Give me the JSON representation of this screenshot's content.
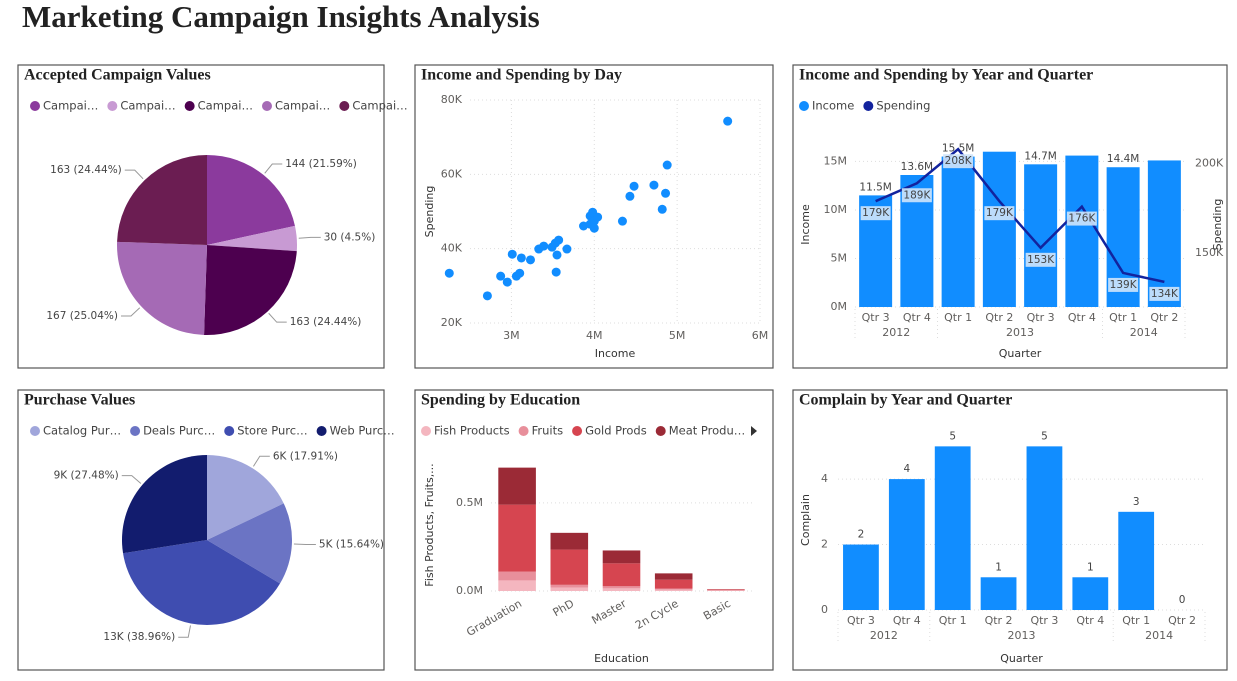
{
  "title": "Marketing Campaign Insights Analysis",
  "chart_data": [
    {
      "type": "pie",
      "title": "Accepted Campaign Values",
      "categories": [
        "Campai…",
        "Campai…",
        "Campai…",
        "Campai…",
        "Campai…"
      ],
      "values": [
        144,
        30,
        163,
        167,
        163
      ],
      "value_labels": [
        "144 (21.59%)",
        "30 (4.5%)",
        "163 (24.44%)",
        "167 (25.04%)",
        "163 (24.44%)"
      ],
      "colors": [
        "#8b3a9d",
        "#c89ad3",
        "#4d004f",
        "#a56ab5",
        "#6b1d52"
      ],
      "legend": "top"
    },
    {
      "type": "scatter",
      "title": "Income and Spending by Day",
      "x_label": "Income",
      "y_label": "Spending",
      "x": [
        2250000,
        2710000,
        2870000,
        2950000,
        3010000,
        3060000,
        3100000,
        3120000,
        3230000,
        3330000,
        3390000,
        3490000,
        3530000,
        3550000,
        3540000,
        3570000,
        3670000,
        3870000,
        3950000,
        3950000,
        3980000,
        4000000,
        4040000,
        4000000,
        4340000,
        4430000,
        4480000,
        4720000,
        4820000,
        4860000,
        4880000,
        5610000
      ],
      "values": [
        33400,
        27300,
        32600,
        31000,
        38500,
        32600,
        33400,
        37500,
        37000,
        39900,
        40700,
        40400,
        41500,
        38300,
        33700,
        42300,
        39900,
        46100,
        48800,
        46600,
        49800,
        47400,
        48500,
        45500,
        47400,
        54100,
        56800,
        57100,
        50600,
        54900,
        62500,
        74300
      ],
      "color": "#118dff",
      "xlim": [
        2500000,
        6000000
      ],
      "ylim": [
        20000,
        80000
      ],
      "xticks": [
        {
          "value": 3000000,
          "label": "3M"
        },
        {
          "value": 4000000,
          "label": "4M"
        },
        {
          "value": 5000000,
          "label": "5M"
        },
        {
          "value": 6000000,
          "label": "6M"
        }
      ],
      "yticks": [
        {
          "value": 20000,
          "label": "20K"
        },
        {
          "value": 40000,
          "label": "40K"
        },
        {
          "value": 60000,
          "label": "60K"
        },
        {
          "value": 80000,
          "label": "80K"
        }
      ],
      "grid": true
    },
    {
      "type": "combo",
      "title": "Income and Spending by Year and Quarter",
      "x_label": "Quarter",
      "y_label": "Income",
      "y2_label": "Spending",
      "categories": [
        "Qtr 3",
        "Qtr 4",
        "Qtr 1",
        "Qtr 2",
        "Qtr 3",
        "Qtr 4",
        "Qtr 1",
        "Qtr 2"
      ],
      "x_groups": [
        {
          "label": "2012",
          "count": 2
        },
        {
          "label": "2013",
          "count": 4
        },
        {
          "label": "2014",
          "count": 2
        }
      ],
      "series": [
        {
          "name": "Income",
          "type": "bar",
          "color": "#118dff",
          "values": [
            11500000,
            13600000,
            15500000,
            16000000,
            14700000,
            15600000,
            14400000,
            15100000
          ],
          "value_labels": [
            "11.5M",
            "13.6M",
            "15.5M",
            null,
            "14.7M",
            null,
            "14.4M",
            null
          ]
        },
        {
          "name": "Spending",
          "type": "line",
          "axis": "y2",
          "color": "#12239e",
          "values": [
            179000,
            189000,
            208000,
            179000,
            153000,
            176000,
            139000,
            134000
          ],
          "value_labels": [
            "179K",
            "189K",
            "208K",
            "179K",
            "153K",
            "176K",
            "139K",
            "134K"
          ]
        }
      ],
      "ylim": [
        0,
        17000000
      ],
      "yticks": [
        {
          "value": 0,
          "label": "0M"
        },
        {
          "value": 5000000,
          "label": "5M"
        },
        {
          "value": 10000000,
          "label": "10M"
        },
        {
          "value": 15000000,
          "label": "15M"
        }
      ],
      "y2lim": [
        120000,
        212000
      ],
      "y2ticks": [
        {
          "value": 150000,
          "label": "150K"
        },
        {
          "value": 200000,
          "label": "200K"
        }
      ],
      "grid": true,
      "legend": "top"
    },
    {
      "type": "pie",
      "title": "Purchase Values",
      "categories": [
        "Catalog Pur…",
        "Deals Purc…",
        "Store Purc…",
        "Web Purc…"
      ],
      "values": [
        5982,
        5224,
        13013,
        9178
      ],
      "value_labels": [
        "6K (17.91%)",
        "5K (15.64%)",
        "13K (38.96%)",
        "9K (27.48%)"
      ],
      "colors": [
        "#a0a6db",
        "#6b74c4",
        "#3f4db0",
        "#121c6e"
      ],
      "legend": "top"
    },
    {
      "type": "stacked_bar",
      "title": "Spending by Education",
      "x_label": "Education",
      "y_label": "Fish Products, Fruits,...",
      "categories": [
        "Graduation",
        "PhD",
        "Master",
        "2n Cycle",
        "Basic"
      ],
      "series": [
        {
          "name": "Fish Products",
          "color": "#f4b6bf",
          "values": [
            60000,
            20000,
            15000,
            8000,
            3000
          ]
        },
        {
          "name": "Fruits",
          "color": "#e88f9b",
          "values": [
            50000,
            15000,
            12000,
            6000,
            2000
          ]
        },
        {
          "name": "Gold Prods",
          "color": "#d64550",
          "values": [
            380000,
            200000,
            130000,
            50000,
            4000
          ]
        },
        {
          "name": "Meat Produ…",
          "color": "#9b2a36",
          "values": [
            210000,
            95000,
            73000,
            36000,
            1000
          ]
        }
      ],
      "ylim": [
        0,
        800000
      ],
      "yticks": [
        {
          "value": 0,
          "label": "0.0M"
        },
        {
          "value": 500000,
          "label": "0.5M"
        }
      ],
      "grid": true,
      "legend": "top"
    },
    {
      "type": "bar",
      "title": "Complain by Year and Quarter",
      "x_label": "Quarter",
      "y_label": "Complain",
      "categories": [
        "Qtr 3",
        "Qtr 4",
        "Qtr 1",
        "Qtr 2",
        "Qtr 3",
        "Qtr 4",
        "Qtr 1",
        "Qtr 2"
      ],
      "x_groups": [
        {
          "label": "2012",
          "count": 2
        },
        {
          "label": "2013",
          "count": 4
        },
        {
          "label": "2014",
          "count": 2
        }
      ],
      "values": [
        2,
        4,
        5,
        1,
        5,
        1,
        3,
        0
      ],
      "color": "#118dff",
      "ylim": [
        0,
        5.5
      ],
      "yticks": [
        0,
        2,
        4
      ],
      "grid": true
    }
  ]
}
